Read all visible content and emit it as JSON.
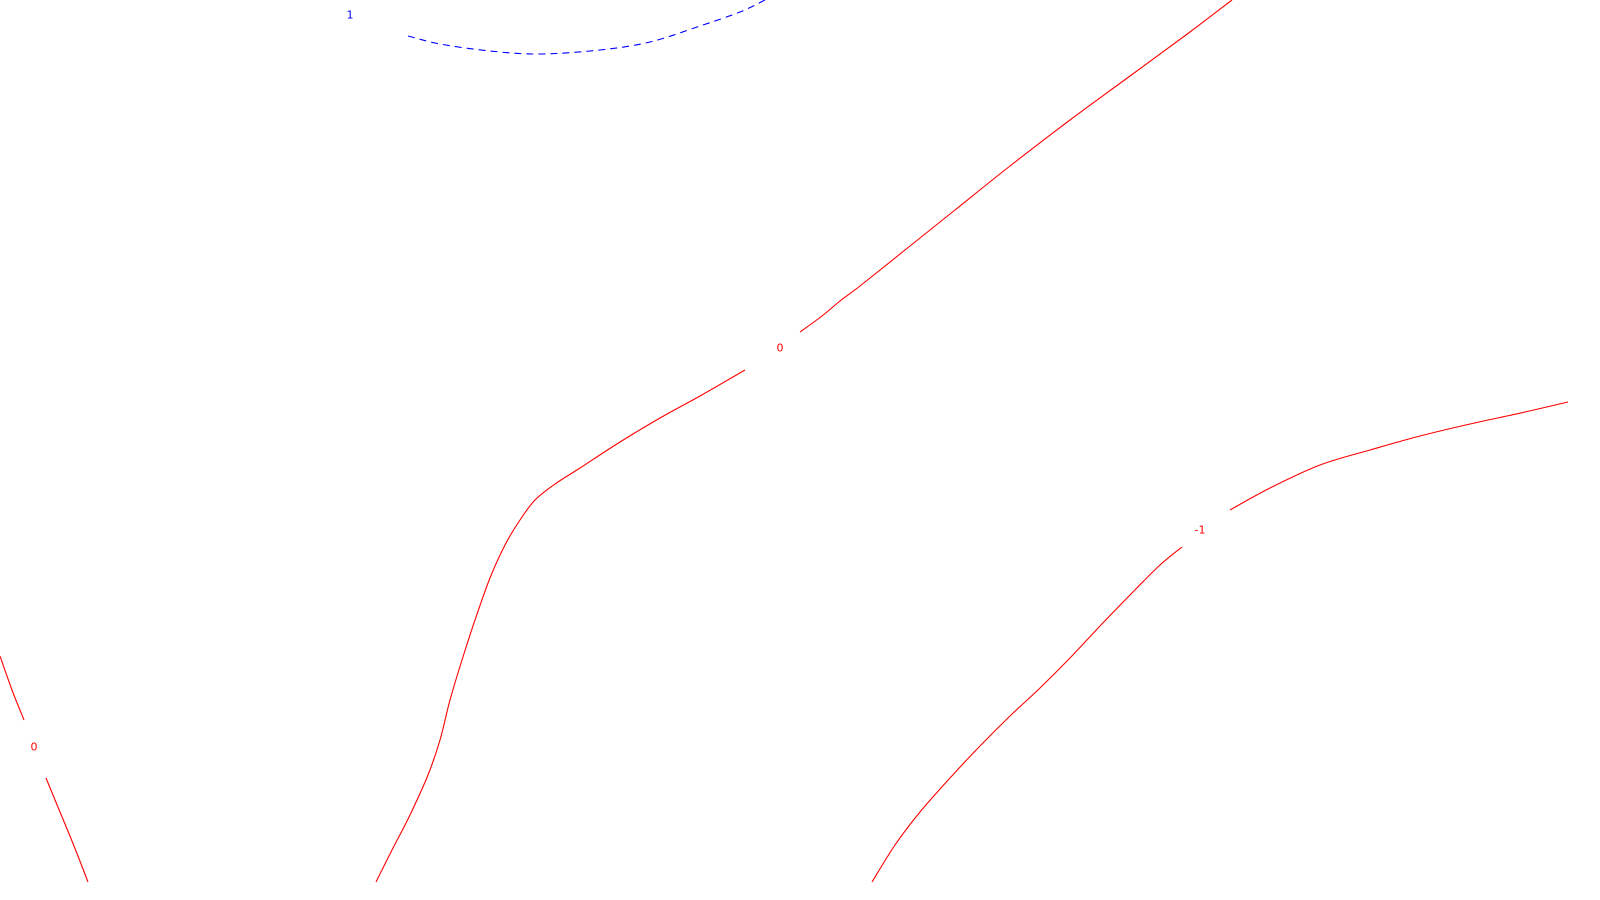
{
  "chart_data": {
    "type": "contour",
    "title": "",
    "xlabel": "",
    "ylabel": "",
    "grid": false,
    "legend": "none",
    "levels": [
      {
        "level": 1,
        "label": "1",
        "color": "#0000ff",
        "style": "dashed",
        "segments": [
          {
            "label_at": 1,
            "points": [
              [
                310,
                0
              ],
              [
                350,
                15
              ],
              [
                408,
                36
              ],
              [
                440,
                44
              ],
              [
                490,
                51
              ],
              [
                540,
                54
              ],
              [
                600,
                50
              ],
              [
                650,
                42
              ],
              [
                700,
                26
              ],
              [
                740,
                12
              ],
              [
                765,
                0
              ]
            ]
          }
        ]
      },
      {
        "level": 0,
        "label": "0",
        "color": "#ff0000",
        "style": "solid",
        "segments": [
          {
            "label_at": 11,
            "points": [
              [
                1232,
                0
              ],
              [
                1190,
                32
              ],
              [
                1130,
                76
              ],
              [
                1070,
                120
              ],
              [
                1010,
                166
              ],
              [
                955,
                210
              ],
              [
                905,
                250
              ],
              [
                860,
                286
              ],
              [
                840,
                301
              ],
              [
                822,
                316
              ],
              [
                800,
                332
              ],
              [
                780,
                348
              ],
              [
                745,
                370
              ],
              [
                700,
                396
              ],
              [
                660,
                418
              ],
              [
                620,
                442
              ],
              [
                580,
                468
              ],
              [
                555,
                484
              ],
              [
                535,
                500
              ],
              [
                520,
                520
              ],
              [
                505,
                545
              ],
              [
                490,
                578
              ],
              [
                475,
                620
              ],
              [
                462,
                660
              ],
              [
                450,
                700
              ],
              [
                440,
                740
              ],
              [
                428,
                775
              ],
              [
                410,
                815
              ],
              [
                393,
                848
              ],
              [
                376,
                882
              ]
            ]
          },
          {
            "label_at": 3,
            "points": [
              [
                0,
                656
              ],
              [
                12,
                690
              ],
              [
                24,
                720
              ],
              [
                34,
                747
              ],
              [
                46,
                778
              ],
              [
                60,
                812
              ],
              [
                74,
                846
              ],
              [
                88,
                882
              ]
            ]
          }
        ]
      },
      {
        "level": -1,
        "label": "-1",
        "color": "#ff0000",
        "style": "solid",
        "segments": [
          {
            "label_at": 8,
            "points": [
              [
                1568,
                402
              ],
              [
                1525,
                412
              ],
              [
                1470,
                424
              ],
              [
                1420,
                436
              ],
              [
                1370,
                450
              ],
              [
                1320,
                465
              ],
              [
                1270,
                488
              ],
              [
                1230,
                510
              ],
              [
                1200,
                530
              ],
              [
                1182,
                547
              ],
              [
                1160,
                565
              ],
              [
                1130,
                595
              ],
              [
                1100,
                626
              ],
              [
                1070,
                658
              ],
              [
                1040,
                688
              ],
              [
                1010,
                716
              ],
              [
                980,
                746
              ],
              [
                950,
                778
              ],
              [
                920,
                812
              ],
              [
                895,
                845
              ],
              [
                872,
                882
              ]
            ]
          }
        ]
      }
    ]
  }
}
